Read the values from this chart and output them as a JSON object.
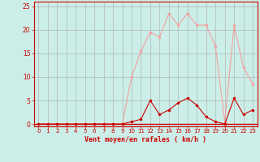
{
  "x": [
    0,
    1,
    2,
    3,
    4,
    5,
    6,
    7,
    8,
    9,
    10,
    11,
    12,
    13,
    14,
    15,
    16,
    17,
    18,
    19,
    20,
    21,
    22,
    23
  ],
  "y_rafales": [
    0,
    0,
    0,
    0,
    0,
    0,
    0,
    0,
    0,
    0,
    10,
    15.5,
    19.5,
    18.5,
    23.5,
    21,
    23.5,
    21,
    21,
    16.5,
    0.5,
    21,
    12,
    8.5
  ],
  "y_moyen": [
    0,
    0,
    0,
    0,
    0,
    0,
    0,
    0,
    0,
    0,
    0.5,
    1,
    5,
    2,
    3,
    4.5,
    5.5,
    4,
    1.5,
    0.5,
    0,
    5.5,
    2,
    3
  ],
  "color_rafales": "#f4a0a0",
  "color_moyen": "#cc0000",
  "bg_color": "#cceee8",
  "grid_color": "#aaaaaa",
  "xlabel": "Vent moyen/en rafales ( km/h )",
  "xlabel_color": "#cc0000",
  "tick_color": "#cc0000",
  "xlim": [
    -0.5,
    23.5
  ],
  "ylim": [
    -0.5,
    26
  ],
  "yticks": [
    0,
    5,
    10,
    15,
    20,
    25
  ],
  "xticks": [
    0,
    1,
    2,
    3,
    4,
    5,
    6,
    7,
    8,
    9,
    10,
    11,
    12,
    13,
    14,
    15,
    16,
    17,
    18,
    19,
    20,
    21,
    22,
    23
  ]
}
